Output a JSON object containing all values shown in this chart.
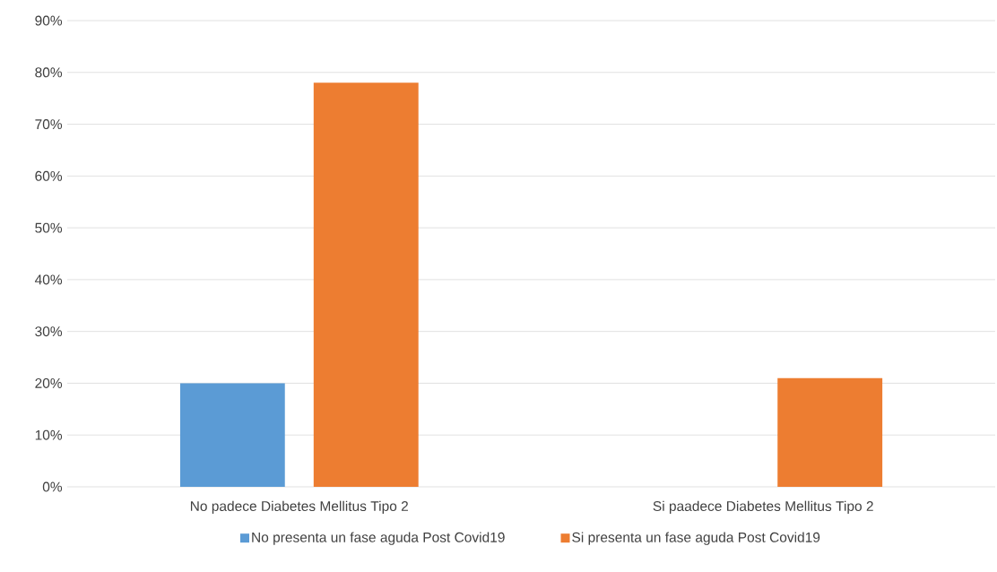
{
  "chart_data": {
    "type": "bar",
    "categories": [
      "No padece Diabetes Mellitus Tipo 2",
      "Si paadece Diabetes Mellitus Tipo 2"
    ],
    "series": [
      {
        "name": "No presenta un fase aguda Post Covid19",
        "color": "#5b9bd5",
        "values": [
          20,
          0
        ]
      },
      {
        "name": "Si presenta un fase aguda Post Covid19",
        "color": "#ed7d31",
        "values": [
          78,
          21
        ]
      }
    ],
    "ylim": [
      0,
      90
    ],
    "yticks": [
      {
        "value": 0,
        "label": "0%"
      },
      {
        "value": 10,
        "label": "10%"
      },
      {
        "value": 20,
        "label": "20%"
      },
      {
        "value": 30,
        "label": "30%"
      },
      {
        "value": 40,
        "label": "40%"
      },
      {
        "value": 50,
        "label": "50%"
      },
      {
        "value": 60,
        "label": "60%"
      },
      {
        "value": 70,
        "label": "70%"
      },
      {
        "value": 80,
        "label": "80%"
      },
      {
        "value": 90,
        "label": "90%"
      }
    ],
    "grid": "y",
    "legend": "bottom"
  }
}
